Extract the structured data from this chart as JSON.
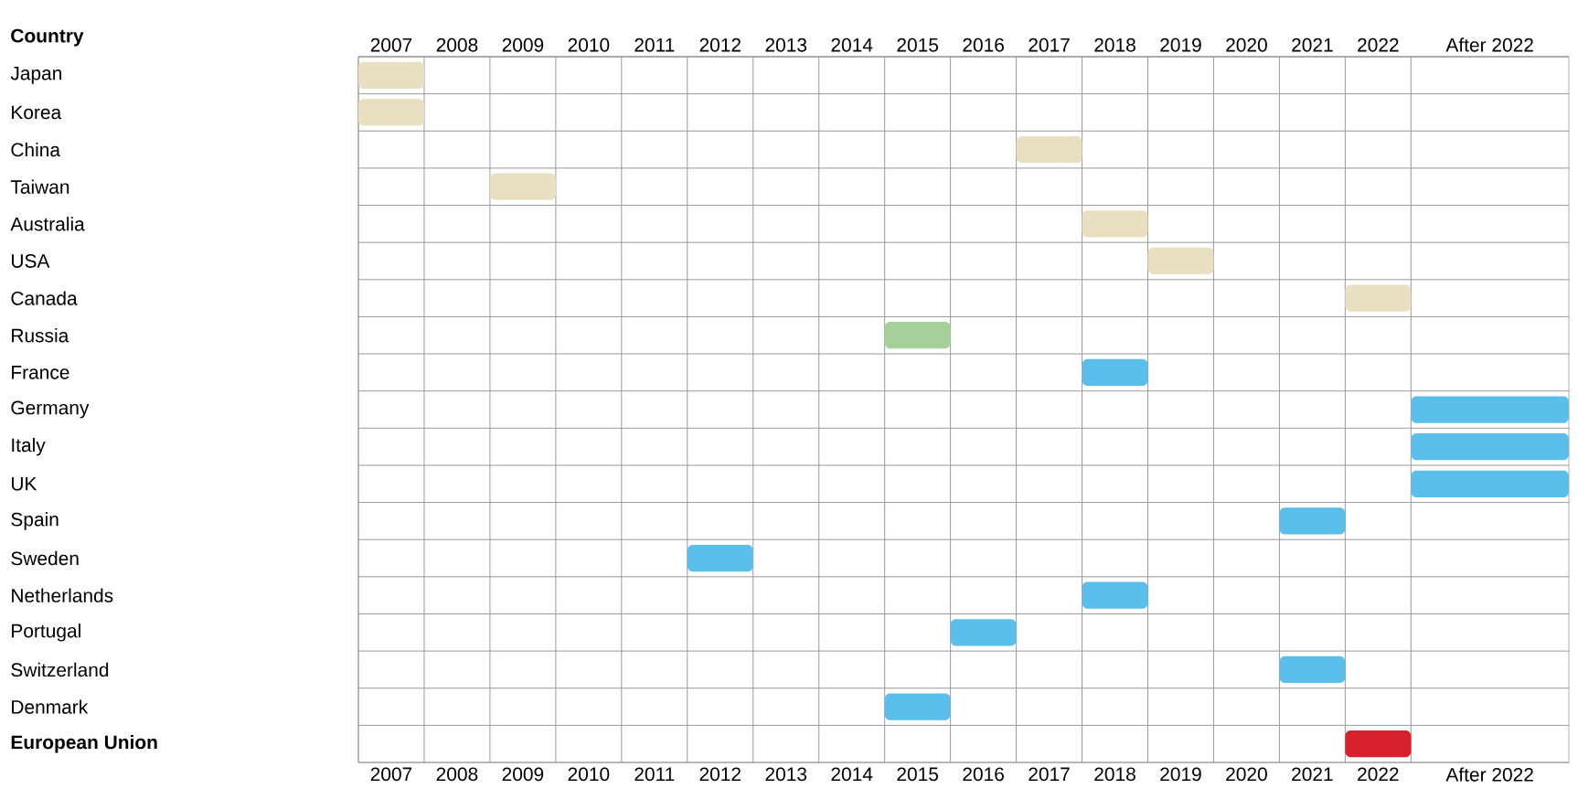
{
  "chart_data": {
    "type": "bar",
    "orientation": "horizontal",
    "ylabel": "**Country**",
    "categories": [
      "Japan",
      "Korea",
      "China",
      "Taiwan",
      "Australia",
      "USA",
      "Canada",
      "Russia",
      "France",
      "Germany",
      "Italy",
      "UK",
      "Spain",
      "Sweden",
      "Netherlands",
      "Portugal",
      "Switzerland",
      "Denmark",
      "**European Union**"
    ],
    "base": [
      2007,
      2007,
      2017,
      2009,
      2018,
      2019,
      2022,
      2015,
      2018,
      2023,
      2023,
      2023,
      2021,
      2012,
      2018,
      2016,
      2021,
      2015,
      2022
    ],
    "values": [
      1,
      1,
      1,
      1,
      1,
      1,
      1,
      1,
      1,
      2.4,
      2.4,
      2.4,
      1,
      1,
      1,
      1,
      1,
      1,
      1
    ],
    "colors": [
      "#e8e0c0",
      "#e8e0c0",
      "#e8e0c0",
      "#e8e0c0",
      "#e8e0c0",
      "#e8e0c0",
      "#e8e0c0",
      "#a5d09a",
      "#5bbfec",
      "#5bbfec",
      "#5bbfec",
      "#5bbfec",
      "#5bbfec",
      "#5bbfec",
      "#5bbfec",
      "#5bbfec",
      "#5bbfec",
      "#5bbfec",
      "#d7212c"
    ],
    "xlim": [
      2007,
      2025.4
    ],
    "xticks": [
      {
        "value": 2007.5,
        "label": "2007"
      },
      {
        "value": 2008.5,
        "label": "2008"
      },
      {
        "value": 2009.5,
        "label": "2009"
      },
      {
        "value": 2010.5,
        "label": "2010"
      },
      {
        "value": 2011.5,
        "label": "2011"
      },
      {
        "value": 2012.5,
        "label": "2012"
      },
      {
        "value": 2013.5,
        "label": "2013"
      },
      {
        "value": 2014.5,
        "label": "2014"
      },
      {
        "value": 2015.5,
        "label": "2015"
      },
      {
        "value": 2016.5,
        "label": "2016"
      },
      {
        "value": 2017.5,
        "label": "2017"
      },
      {
        "value": 2018.5,
        "label": "2018"
      },
      {
        "value": 2019.5,
        "label": "2019"
      },
      {
        "value": 2020.5,
        "label": "2020"
      },
      {
        "value": 2021.5,
        "label": "2021"
      },
      {
        "value": 2022.5,
        "label": "2022"
      },
      {
        "value": 2024.2,
        "label": "After 2022"
      }
    ],
    "x2lim": [
      2007,
      2025.4
    ],
    "x2ticks": [
      {
        "value": 2007.5,
        "label": "2007"
      },
      {
        "value": 2008.5,
        "label": "2008"
      },
      {
        "value": 2009.5,
        "label": "2009"
      },
      {
        "value": 2010.5,
        "label": "2010"
      },
      {
        "value": 2011.5,
        "label": "2011"
      },
      {
        "value": 2012.5,
        "label": "2012"
      },
      {
        "value": 2013.5,
        "label": "2013"
      },
      {
        "value": 2014.5,
        "label": "2014"
      },
      {
        "value": 2015.5,
        "label": "2015"
      },
      {
        "value": 2016.5,
        "label": "2016"
      },
      {
        "value": 2017.5,
        "label": "2017"
      },
      {
        "value": 2018.5,
        "label": "2018"
      },
      {
        "value": 2019.5,
        "label": "2019"
      },
      {
        "value": 2020.5,
        "label": "2020"
      },
      {
        "value": 2021.5,
        "label": "2021"
      },
      {
        "value": 2022.5,
        "label": "2022"
      },
      {
        "value": 2024.2,
        "label": "After 2022"
      }
    ],
    "grid": true
  }
}
